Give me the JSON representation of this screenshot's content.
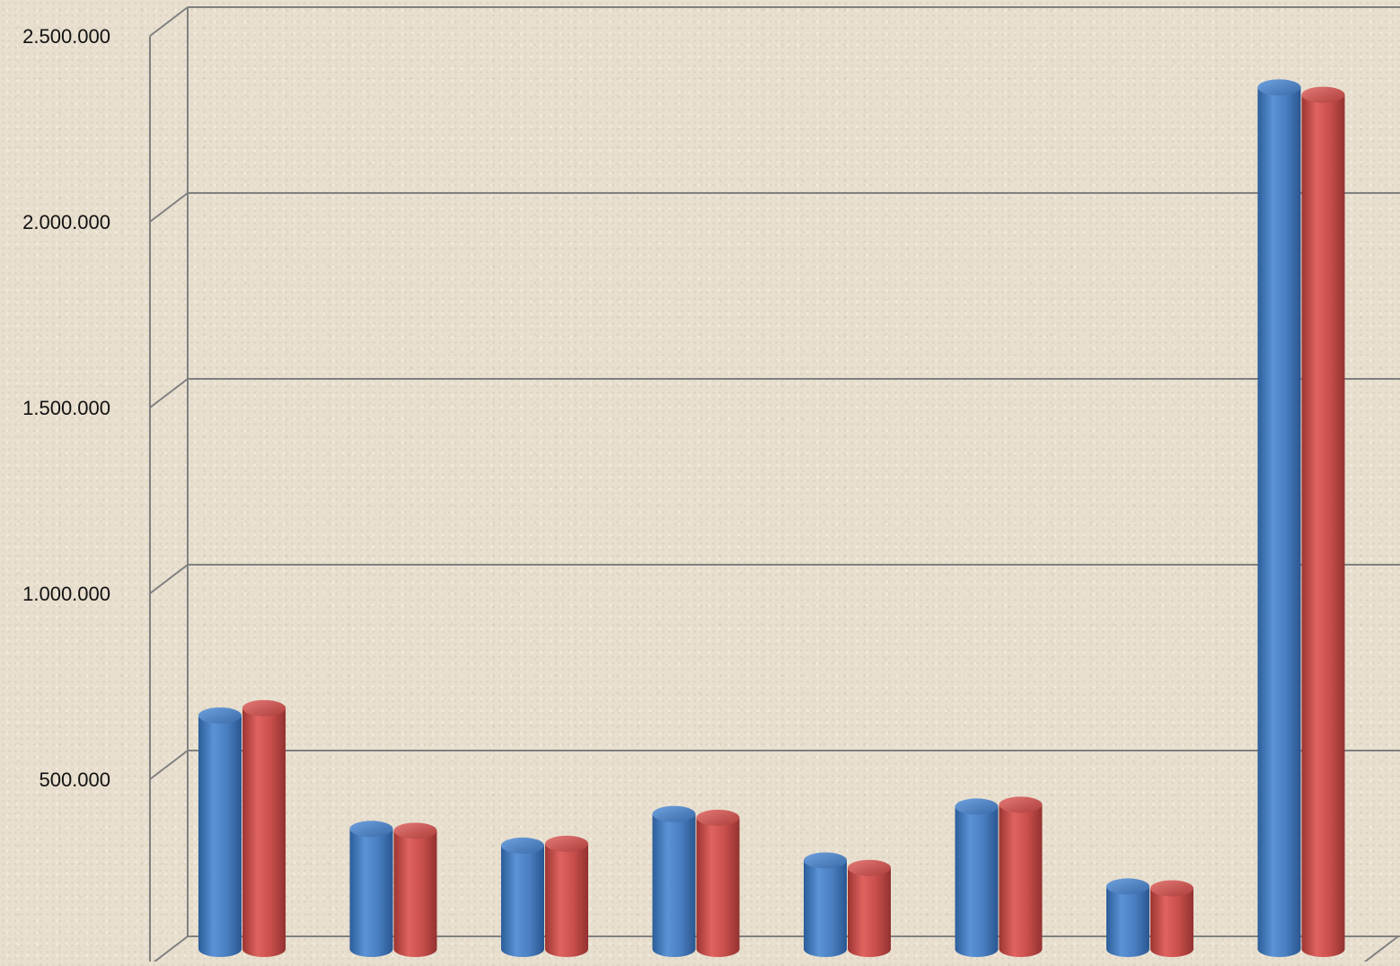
{
  "chart_data": {
    "type": "bar",
    "title": "",
    "xlabel": "",
    "ylabel": "",
    "categories": [
      "",
      "",
      "",
      "",
      "",
      "",
      "",
      ""
    ],
    "series": [
      {
        "color": "#4a7fc1",
        "values": [
          620000,
          315000,
          270000,
          355000,
          230000,
          375000,
          160000,
          2310000
        ]
      },
      {
        "color": "#c94f4c",
        "values": [
          640000,
          310000,
          275000,
          345000,
          210000,
          380000,
          155000,
          2290000
        ]
      }
    ],
    "ylim": [
      0,
      2500000
    ],
    "yticks": [
      0,
      500000,
      1000000,
      1500000,
      2000000,
      2500000
    ],
    "ytick_labels": [
      "",
      "500.000",
      "1.000.000",
      "1.500.000",
      "2.000.000",
      "2.500.000"
    ],
    "grid": true,
    "legend": "none",
    "style": "3d-cylinder",
    "colors": {
      "background": "#e8dfcf",
      "gridline": "#808080"
    }
  }
}
